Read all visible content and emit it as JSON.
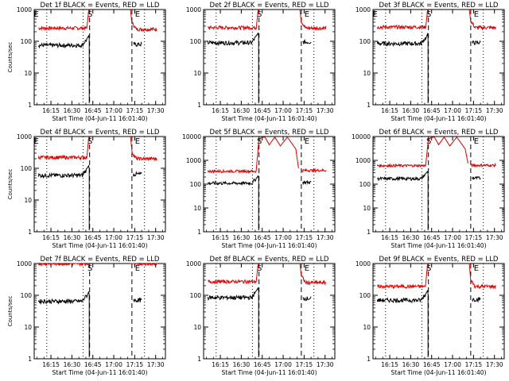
{
  "chart_data": [
    {
      "type": "line",
      "title": "Det 1f BLACK = Events, RED = LLD",
      "xlabel": "Start Time (04-Jun-11 16:01:40)",
      "ylabel": "Counts/sec",
      "yscale": "log",
      "ylim": [
        1,
        1000
      ],
      "xticks": [
        "16:15",
        "16:30",
        "16:45",
        "17:00",
        "17:15",
        "17:30"
      ],
      "yticks": [
        "1",
        "10",
        "100",
        "1000"
      ],
      "markers": [
        "E",
        "S",
        "E"
      ],
      "series": [
        {
          "color": "#e00000",
          "before": 260,
          "after": 240,
          "bump": false
        },
        {
          "color": "#000000",
          "before": 75,
          "after": 80
        }
      ]
    },
    {
      "type": "line",
      "title": "Det 2f BLACK = Events, RED = LLD",
      "xlabel": "Start Time (04-Jun-11 16:01:40)",
      "ylabel": "",
      "yscale": "log",
      "ylim": [
        1,
        1000
      ],
      "xticks": [
        "16:15",
        "16:30",
        "16:45",
        "17:00",
        "17:15",
        "17:30"
      ],
      "yticks": [
        "1",
        "10",
        "100",
        "1000"
      ],
      "markers": [
        "S",
        "E"
      ],
      "series": [
        {
          "color": "#e00000",
          "before": 270,
          "after": 260,
          "bump": false
        },
        {
          "color": "#000000",
          "before": 90,
          "after": 95
        }
      ]
    },
    {
      "type": "line",
      "title": "Det 3f BLACK = Events, RED = LLD",
      "xlabel": "Start Time (04-Jun-11 16:01:40)",
      "ylabel": "",
      "yscale": "log",
      "ylim": [
        1,
        1000
      ],
      "xticks": [
        "16:15",
        "16:30",
        "16:45",
        "17:00",
        "17:15",
        "17:30"
      ],
      "yticks": [
        "1",
        "10",
        "100",
        "1000"
      ],
      "markers": [
        "E",
        "S",
        "E"
      ],
      "series": [
        {
          "color": "#e00000",
          "before": 280,
          "after": 270,
          "bump": false
        },
        {
          "color": "#000000",
          "before": 85,
          "after": 90
        }
      ]
    },
    {
      "type": "line",
      "title": "Det 4f BLACK = Events, RED = LLD",
      "xlabel": "Start Time (04-Jun-11 16:01:40)",
      "ylabel": "Counts/sec",
      "yscale": "log",
      "ylim": [
        1,
        1000
      ],
      "xticks": [
        "16:15",
        "16:30",
        "16:45",
        "17:00",
        "17:15",
        "17:30"
      ],
      "yticks": [
        "1",
        "10",
        "100",
        "1000"
      ],
      "markers": [
        "E",
        "S",
        "E"
      ],
      "series": [
        {
          "color": "#e00000",
          "before": 220,
          "after": 200,
          "bump": false
        },
        {
          "color": "#000000",
          "before": 60,
          "after": 65
        }
      ]
    },
    {
      "type": "line",
      "title": "Det 5f BLACK = Events, RED = LLD",
      "xlabel": "Start Time (04-Jun-11 16:01:40)",
      "ylabel": "",
      "yscale": "log",
      "ylim": [
        1,
        10000
      ],
      "xticks": [
        "16:15",
        "16:30",
        "16:45",
        "17:00",
        "17:15",
        "17:30"
      ],
      "yticks": [
        "1",
        "10",
        "100",
        "1000",
        "10000"
      ],
      "markers": [
        "S",
        "E"
      ],
      "series": [
        {
          "color": "#e00000",
          "before": 350,
          "after": 380,
          "bump": true
        },
        {
          "color": "#000000",
          "before": 110,
          "after": 120
        }
      ]
    },
    {
      "type": "line",
      "title": "Det 6f BLACK = Events, RED = LLD",
      "xlabel": "Start Time (04-Jun-11 16:01:40)",
      "ylabel": "",
      "yscale": "log",
      "ylim": [
        1,
        10000
      ],
      "xticks": [
        "16:15",
        "16:30",
        "16:45",
        "17:00",
        "17:15",
        "17:30"
      ],
      "yticks": [
        "1",
        "10",
        "100",
        "1000",
        "10000"
      ],
      "markers": [
        "S",
        "E"
      ],
      "series": [
        {
          "color": "#e00000",
          "before": 600,
          "after": 620,
          "bump": true
        },
        {
          "color": "#000000",
          "before": 170,
          "after": 180
        }
      ]
    },
    {
      "type": "line",
      "title": "Det 7f BLACK = Events, RED = LLD",
      "xlabel": "Start Time (04-Jun-11 16:01:40)",
      "ylabel": "Counts/sec",
      "yscale": "log",
      "ylim": [
        1,
        1000
      ],
      "xticks": [
        "16:15",
        "16:30",
        "16:45",
        "17:00",
        "17:15",
        "17:30"
      ],
      "yticks": [
        "1",
        "10",
        "100",
        "1000"
      ],
      "markers": [
        "S",
        "E"
      ],
      "series": [
        {
          "color": "#e00000",
          "before": 1000,
          "after": 1000,
          "bump": false
        },
        {
          "color": "#000000",
          "before": 65,
          "after": 70
        }
      ]
    },
    {
      "type": "line",
      "title": "Det 8f BLACK = Events, RED = LLD",
      "xlabel": "Start Time (04-Jun-11 16:01:40)",
      "ylabel": "",
      "yscale": "log",
      "ylim": [
        1,
        1000
      ],
      "xticks": [
        "16:15",
        "16:30",
        "16:45",
        "17:00",
        "17:15",
        "17:30"
      ],
      "yticks": [
        "1",
        "10",
        "100",
        "1000"
      ],
      "markers": [
        "S",
        "E"
      ],
      "series": [
        {
          "color": "#e00000",
          "before": 270,
          "after": 250,
          "bump": false
        },
        {
          "color": "#000000",
          "before": 85,
          "after": 80
        }
      ]
    },
    {
      "type": "line",
      "title": "Det 9f BLACK = Events, RED = LLD",
      "xlabel": "Start Time (04-Jun-11 16:01:40)",
      "ylabel": "",
      "yscale": "log",
      "ylim": [
        1,
        1000
      ],
      "xticks": [
        "16:15",
        "16:30",
        "16:45",
        "17:00",
        "17:15",
        "17:30"
      ],
      "yticks": [
        "1",
        "10",
        "100",
        "1000"
      ],
      "markers": [
        "S",
        "E"
      ],
      "series": [
        {
          "color": "#e00000",
          "before": 190,
          "after": 190,
          "bump": false
        },
        {
          "color": "#000000",
          "before": 70,
          "after": 75
        }
      ]
    }
  ]
}
